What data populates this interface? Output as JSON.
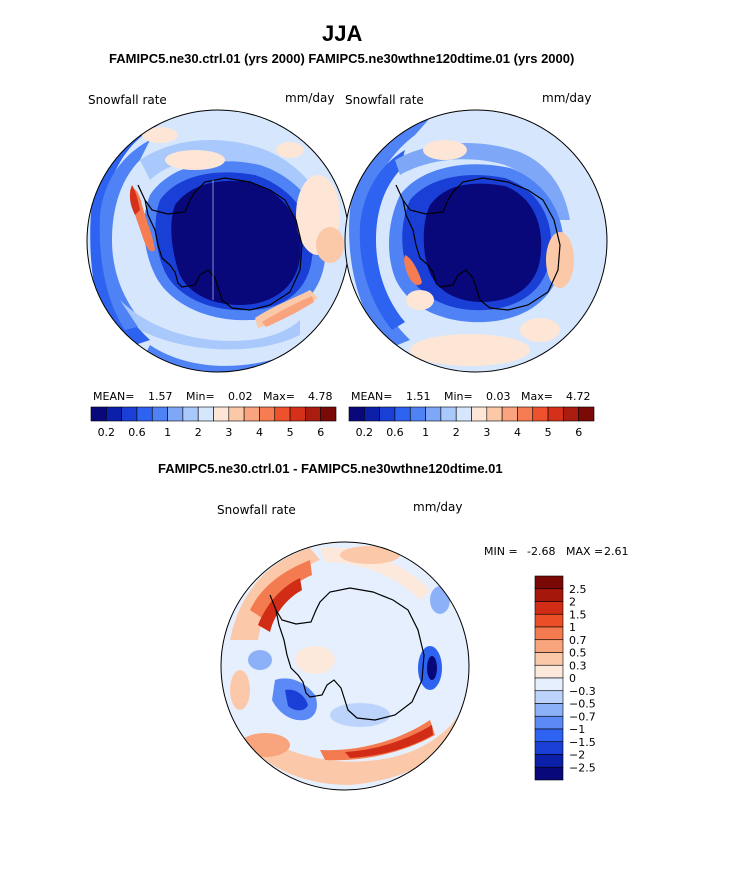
{
  "title": "JJA",
  "subtitle": "FAMIPC5.ne30.ctrl.01 (yrs 2000)  FAMIPC5.ne30wthne120dtime.01 (yrs 2000)",
  "diff_title": "FAMIPC5.ne30.ctrl.01 - FAMIPC5.ne30wthne120dtime.01",
  "panels": [
    {
      "variable": "Snowfall rate",
      "units": "mm/day",
      "mean_label": "MEAN=",
      "mean": "1.57",
      "min_label": "Min=",
      "min": "0.02",
      "max_label": "Max=",
      "max": "4.78"
    },
    {
      "variable": "Snowfall rate",
      "units": "mm/day",
      "mean_label": "MEAN=",
      "mean": "1.51",
      "min_label": "Min=",
      "min": "0.03",
      "max_label": "Max=",
      "max": "4.72"
    }
  ],
  "diff_panel": {
    "variable": "Snowfall rate",
    "units": "mm/day",
    "min_label": "MIN =",
    "min": "-2.68",
    "max_label": "MAX =",
    "max": "2.61"
  },
  "colorbar_top": {
    "colors": [
      "#08087a",
      "#0c1fa8",
      "#1a3fd6",
      "#2d63f0",
      "#4f83f5",
      "#7ea7f8",
      "#a9c8fb",
      "#d5e6fd",
      "#fde6d6",
      "#fbc8a8",
      "#f9a47e",
      "#f67c52",
      "#ee522c",
      "#d5301a",
      "#aa1c10",
      "#7a0a06"
    ],
    "labels": [
      "0.2",
      "0.6",
      "1",
      "2",
      "3",
      "4",
      "5",
      "6"
    ]
  },
  "colorbar_diff": {
    "colors": [
      "#08087a",
      "#0c1fa8",
      "#1a3fd6",
      "#2d63f0",
      "#5b8af6",
      "#8db1f9",
      "#bcd4fc",
      "#e6effd",
      "#fde8dc",
      "#fbc9aa",
      "#f8a47c",
      "#f47b4f",
      "#ec4f28",
      "#d12d16",
      "#a6170b",
      "#7a0805"
    ],
    "labels": [
      "2.5",
      "2",
      "1.5",
      "1",
      "0.7",
      "0.5",
      "0.3",
      "0",
      "−0.3",
      "−0.5",
      "−0.7",
      "−1",
      "−1.5",
      "−2",
      "−2.5"
    ]
  }
}
